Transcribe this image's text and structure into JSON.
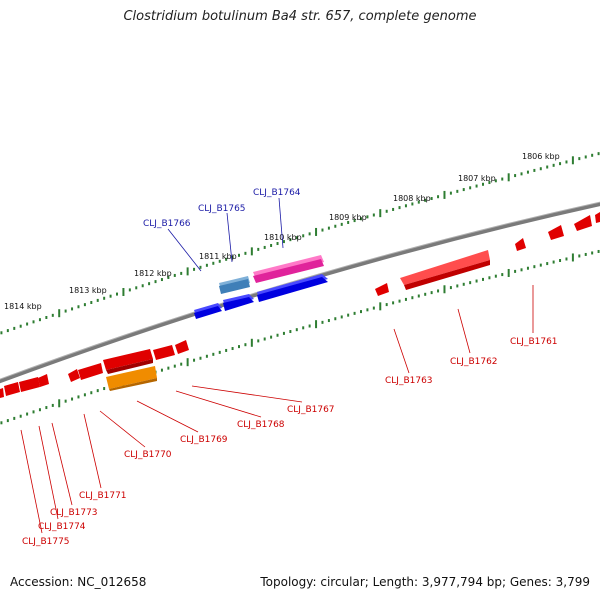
{
  "title": "Clostridium botulinum Ba4 str. 657, complete genome",
  "footer": {
    "accession": "Accession: NC_012658",
    "topology": "Topology: circular; Length: 3,977,794 bp; Genes: 3,799"
  },
  "colors": {
    "backbone": "#7a7a7a",
    "tick": "#2e7d32",
    "forward_label": "#1a1aa6",
    "reverse_label": "#cc0000",
    "gene_red": "#e00000",
    "gene_blue": "#0000e0",
    "gene_pink": "#e0239b",
    "gene_steelblue": "#3f7fb8",
    "gene_orange": "#f08c00"
  },
  "kbp_ticks": [
    "1806 kbp",
    "1807 kbp",
    "1808 kbp",
    "1809 kbp",
    "1810 kbp",
    "1811 kbp",
    "1812 kbp",
    "1813 kbp",
    "1814 kbp"
  ],
  "forward_genes": [
    {
      "name": "CLJ_B1764",
      "color": "pink"
    },
    {
      "name": "CLJ_B1765",
      "color": "steelblue"
    },
    {
      "name": "CLJ_B1766",
      "color": "blue"
    }
  ],
  "reverse_genes": [
    {
      "name": "CLJ_B1761",
      "color": "red"
    },
    {
      "name": "CLJ_B1762",
      "color": "red"
    },
    {
      "name": "CLJ_B1763",
      "color": "red"
    },
    {
      "name": "CLJ_B1767",
      "color": "red"
    },
    {
      "name": "CLJ_B1768",
      "color": "red"
    },
    {
      "name": "CLJ_B1769",
      "color": "red"
    },
    {
      "name": "CLJ_B1770",
      "color": "orange"
    },
    {
      "name": "CLJ_B1771",
      "color": "red"
    },
    {
      "name": "CLJ_B1773",
      "color": "red"
    },
    {
      "name": "CLJ_B1774",
      "color": "red"
    },
    {
      "name": "CLJ_B1775",
      "color": "red"
    }
  ]
}
